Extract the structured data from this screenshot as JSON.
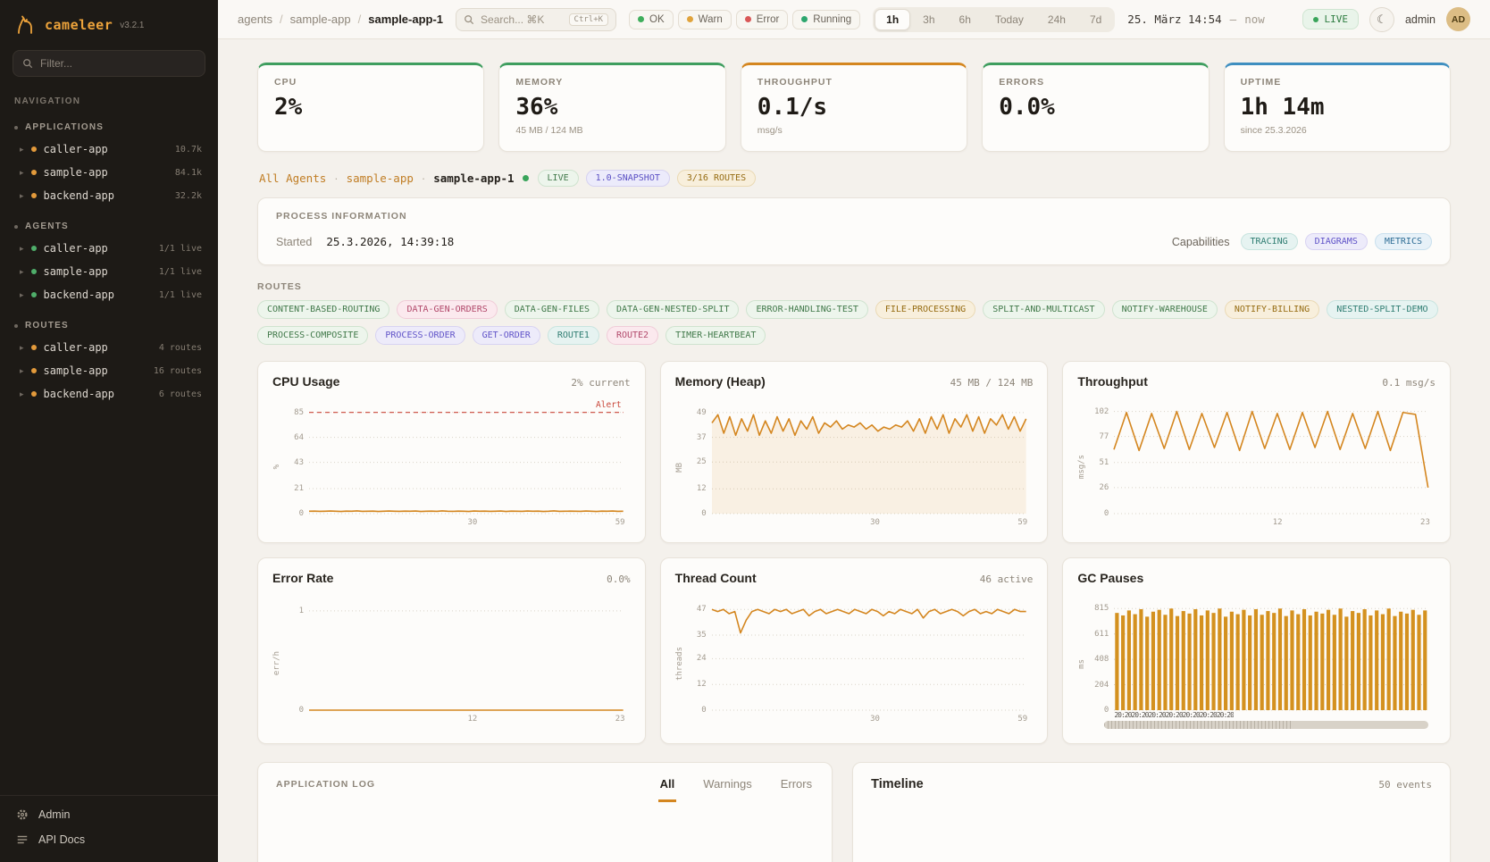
{
  "meta": {
    "app": "cameleer",
    "version": "v3.2.1"
  },
  "palette": {
    "green": {
      "bg": "#edf5ec",
      "fg": "#41794a",
      "bd": "#cfe3cf"
    },
    "pink": {
      "bg": "#fbe9ee",
      "fg": "#b2496b",
      "bd": "#f0ccd8"
    },
    "amber": {
      "bg": "#f8efdc",
      "fg": "#966c12",
      "bd": "#ead9b4"
    },
    "teal": {
      "bg": "#e6f3f1",
      "fg": "#2f7d72",
      "bd": "#c8e4df"
    },
    "purple": {
      "bg": "#edebfa",
      "fg": "#6053c8",
      "bd": "#d8d3f2"
    },
    "indigo": {
      "bg": "#ecebfb",
      "fg": "#5a4fc4",
      "bd": "#d6d2f0"
    },
    "blue": {
      "bg": "#e7f1f8",
      "fg": "#2f6e96",
      "bd": "#c9e0ee"
    }
  },
  "sidebar": {
    "filter_placeholder": "Filter...",
    "nav_label": "NAVIGATION",
    "sections": [
      {
        "label": "APPLICATIONS",
        "dot": "#e39a3b",
        "items": [
          {
            "name": "caller-app",
            "badge": "10.7k"
          },
          {
            "name": "sample-app",
            "badge": "84.1k"
          },
          {
            "name": "backend-app",
            "badge": "32.2k"
          }
        ]
      },
      {
        "label": "AGENTS",
        "dot": "#4fae6a",
        "items": [
          {
            "name": "caller-app",
            "badge": "1/1 live"
          },
          {
            "name": "sample-app",
            "badge": "1/1 live"
          },
          {
            "name": "backend-app",
            "badge": "1/1 live"
          }
        ]
      },
      {
        "label": "ROUTES",
        "dot": "#e39a3b",
        "items": [
          {
            "name": "caller-app",
            "badge": "4 routes"
          },
          {
            "name": "sample-app",
            "badge": "16 routes"
          },
          {
            "name": "backend-app",
            "badge": "6 routes"
          }
        ]
      }
    ],
    "footer": [
      {
        "label": "Admin"
      },
      {
        "label": "API Docs"
      }
    ]
  },
  "header": {
    "breadcrumb": [
      "agents",
      "sample-app",
      "sample-app-1"
    ],
    "breadcrumb_sep": "/",
    "search": {
      "placeholder": "Search... ⌘K",
      "shortcut": "Ctrl+K"
    },
    "legend": [
      {
        "label": "OK",
        "color": "#3fae5c"
      },
      {
        "label": "Warn",
        "color": "#e0a33c"
      },
      {
        "label": "Error",
        "color": "#d95757"
      },
      {
        "label": "Running",
        "color": "#2da66e"
      }
    ],
    "ranges": [
      "1h",
      "3h",
      "6h",
      "Today",
      "24h",
      "7d"
    ],
    "active_range": "1h",
    "datetime": "25. März 14:54",
    "datetime_sep": "—",
    "datetime_suffix": "now",
    "live_label": "LIVE",
    "user": "admin",
    "avatar": "AD"
  },
  "stats": [
    {
      "label": "CPU",
      "value": "2%",
      "sub": "",
      "accent": "#3f9e5f"
    },
    {
      "label": "MEMORY",
      "value": "36%",
      "sub": "45 MB / 124 MB",
      "accent": "#3f9e5f"
    },
    {
      "label": "THROUGHPUT",
      "value": "0.1/s",
      "sub": "msg/s",
      "accent": "#d4861f"
    },
    {
      "label": "ERRORS",
      "value": "0.0%",
      "sub": "",
      "accent": "#3f9e5f"
    },
    {
      "label": "UPTIME",
      "value": "1h 14m",
      "sub": "since 25.3.2026",
      "accent": "#3f8fc0"
    }
  ],
  "subnav": {
    "crumbs": [
      "All Agents",
      "sample-app",
      "sample-app-1"
    ],
    "sep": "·",
    "badges": [
      {
        "label": "LIVE",
        "tone": "green"
      },
      {
        "label": "1.0-SNAPSHOT",
        "tone": "indigo"
      },
      {
        "label": "3/16 ROUTES",
        "tone": "amber"
      }
    ]
  },
  "process": {
    "title": "PROCESS INFORMATION",
    "started_label": "Started",
    "started_value": "25.3.2026, 14:39:18",
    "capabilities_label": "Capabilities",
    "capabilities": [
      {
        "label": "TRACING",
        "tone": "teal"
      },
      {
        "label": "DIAGRAMS",
        "tone": "purple"
      },
      {
        "label": "METRICS",
        "tone": "blue"
      }
    ]
  },
  "routes": {
    "title": "ROUTES",
    "tags": [
      {
        "label": "CONTENT-BASED-ROUTING",
        "tone": "green"
      },
      {
        "label": "DATA-GEN-ORDERS",
        "tone": "pink"
      },
      {
        "label": "DATA-GEN-FILES",
        "tone": "green"
      },
      {
        "label": "DATA-GEN-NESTED-SPLIT",
        "tone": "green"
      },
      {
        "label": "ERROR-HANDLING-TEST",
        "tone": "green"
      },
      {
        "label": "FILE-PROCESSING",
        "tone": "amber"
      },
      {
        "label": "SPLIT-AND-MULTICAST",
        "tone": "green"
      },
      {
        "label": "NOTIFY-WAREHOUSE",
        "tone": "green"
      },
      {
        "label": "NOTIFY-BILLING",
        "tone": "amber"
      },
      {
        "label": "NESTED-SPLIT-DEMO",
        "tone": "teal"
      },
      {
        "label": "PROCESS-COMPOSITE",
        "tone": "green"
      },
      {
        "label": "PROCESS-ORDER",
        "tone": "purple"
      },
      {
        "label": "GET-ORDER",
        "tone": "purple"
      },
      {
        "label": "ROUTE1",
        "tone": "teal"
      },
      {
        "label": "ROUTE2",
        "tone": "pink"
      },
      {
        "label": "TIMER-HEARTBEAT",
        "tone": "green"
      }
    ]
  },
  "charts": [
    {
      "title": "CPU Usage",
      "value": "2% current",
      "ylabel": "%",
      "type": "line",
      "ymax": 90,
      "yticks": [
        0,
        21,
        43,
        64,
        85
      ],
      "xticks": [
        {
          "label": "30",
          "pos": 0.52
        },
        {
          "label": "59",
          "pos": 0.99
        }
      ],
      "alert": {
        "label": "Alert",
        "y": 85
      },
      "points": [
        2,
        2.1,
        1.9,
        2,
        2.2,
        2,
        1.8,
        2.1,
        2,
        2.3,
        1.9,
        2,
        2.1,
        1.8,
        2,
        2.2,
        2,
        1.9,
        2.1,
        2,
        2.2,
        1.8,
        2,
        2.1,
        1.9,
        2.3,
        2,
        1.9,
        2.1,
        2,
        1.8,
        2.2,
        2,
        2.1,
        1.9,
        2,
        2.2,
        1.8,
        2.1,
        2,
        1.9,
        2.2,
        2,
        2.1,
        1.8,
        2,
        2.3,
        1.9,
        2,
        2.1,
        2,
        1.9,
        2.2,
        2,
        1.8,
        2.1,
        2,
        2.2,
        1.9,
        2
      ]
    },
    {
      "title": "Memory (Heap)",
      "value": "45 MB / 124 MB",
      "ylabel": "MB",
      "type": "area",
      "ymax": 52,
      "yticks": [
        0,
        12,
        25,
        37,
        49
      ],
      "xticks": [
        {
          "label": "30",
          "pos": 0.52
        },
        {
          "label": "59",
          "pos": 0.99
        }
      ],
      "points": [
        44,
        48,
        39,
        47,
        38,
        46,
        40,
        48,
        38,
        45,
        39,
        47,
        40,
        46,
        38,
        45,
        41,
        47,
        39,
        44,
        42,
        45,
        41,
        43,
        42,
        44,
        41,
        43,
        40,
        42,
        41,
        43,
        42,
        45,
        40,
        46,
        39,
        47,
        41,
        48,
        39,
        46,
        42,
        48,
        40,
        47,
        39,
        46,
        43,
        48,
        41,
        47,
        40,
        46
      ]
    },
    {
      "title": "Throughput",
      "value": "0.1 msg/s",
      "ylabel": "msg/s",
      "type": "line",
      "ymax": 107,
      "yticks": [
        0,
        26,
        51,
        77,
        102
      ],
      "xticks": [
        {
          "label": "12",
          "pos": 0.52
        },
        {
          "label": "23",
          "pos": 0.99
        }
      ],
      "points": [
        64,
        101,
        63,
        100,
        65,
        102,
        64,
        100,
        66,
        101,
        63,
        102,
        65,
        100,
        64,
        101,
        66,
        102,
        64,
        100,
        65,
        102,
        63,
        101,
        99,
        26
      ]
    },
    {
      "title": "Error Rate",
      "value": "0.0%",
      "ylabel": "err/h",
      "type": "line",
      "ymax": 1.08,
      "yticks": [
        0,
        1
      ],
      "xticks": [
        {
          "label": "12",
          "pos": 0.52
        },
        {
          "label": "23",
          "pos": 0.99
        }
      ],
      "points": [
        0,
        0,
        0,
        0,
        0,
        0,
        0,
        0,
        0,
        0,
        0,
        0,
        0,
        0,
        0,
        0,
        0,
        0,
        0,
        0,
        0,
        0,
        0,
        0,
        0,
        0
      ]
    },
    {
      "title": "Thread Count",
      "value": "46 active",
      "ylabel": "threads",
      "type": "line",
      "ymax": 50,
      "yticks": [
        0,
        12,
        24,
        35,
        47
      ],
      "xticks": [
        {
          "label": "30",
          "pos": 0.52
        },
        {
          "label": "59",
          "pos": 0.99
        }
      ],
      "points": [
        47,
        46,
        47,
        45,
        46,
        36,
        42,
        46,
        47,
        46,
        45,
        47,
        46,
        47,
        45,
        46,
        47,
        44,
        46,
        47,
        45,
        46,
        47,
        46,
        45,
        47,
        46,
        45,
        47,
        46,
        44,
        46,
        45,
        47,
        46,
        45,
        47,
        43,
        46,
        47,
        45,
        46,
        47,
        46,
        44,
        46,
        47,
        45,
        46,
        45,
        47,
        46,
        45,
        47,
        46,
        46
      ]
    },
    {
      "title": "GC Pauses",
      "value": "",
      "ylabel": "ms",
      "type": "bar",
      "ymax": 860,
      "yticks": [
        0,
        204,
        408,
        611,
        815
      ],
      "xticks": [],
      "axis_garble": "20:2020:2020:2020:2020:2020:2020:20",
      "brush": true,
      "points": [
        780,
        760,
        800,
        770,
        810,
        750,
        790,
        805,
        765,
        815,
        755,
        795,
        775,
        810,
        760,
        800,
        780,
        815,
        750,
        790,
        770,
        805,
        760,
        810,
        765,
        795,
        780,
        815,
        755,
        800,
        770,
        810,
        760,
        790,
        775,
        805,
        765,
        815,
        750,
        795,
        780,
        810,
        760,
        800,
        770,
        815,
        755,
        790,
        775,
        805,
        765,
        800
      ]
    }
  ],
  "log": {
    "title": "APPLICATION LOG",
    "tabs": [
      "All",
      "Warnings",
      "Errors"
    ],
    "active_tab": "All"
  },
  "timeline": {
    "title": "Timeline",
    "events": "50 events"
  }
}
